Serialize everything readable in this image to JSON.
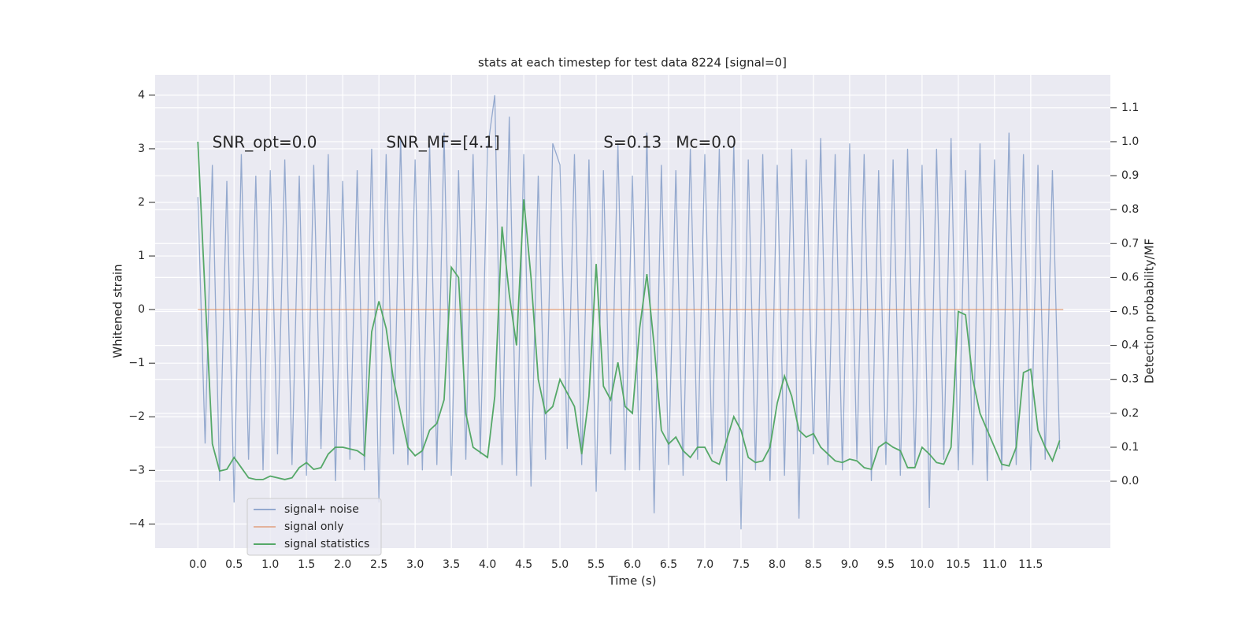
{
  "chart_data": {
    "type": "line",
    "title": "stats at each timestep for test data 8224 [signal=0]",
    "xlabel": "Time (s)",
    "ylabel": "Whitened strain",
    "y2label": "Detection probability/MF",
    "annotations": [
      {
        "text": "SNR_opt=0.0",
        "x": 0.2,
        "y": 3.1
      },
      {
        "text": "SNR_MF=[4.1]",
        "x": 2.6,
        "y": 3.1
      },
      {
        "text": "S=0.13",
        "x": 5.6,
        "y": 3.1
      },
      {
        "text": "Mc=0.0",
        "x": 6.6,
        "y": 3.1
      }
    ],
    "xlim": [
      -0.59,
      12.6
    ],
    "ylim": [
      -4.45,
      4.38
    ],
    "y2lim": [
      -0.197,
      1.197
    ],
    "xticks": [
      {
        "value": 0,
        "label": "0.0"
      },
      0.5,
      {
        "value": 1,
        "label": "1.0"
      },
      1.5,
      {
        "value": 2,
        "label": "2.0"
      },
      2.5,
      {
        "value": 3,
        "label": "3.0"
      },
      3.5,
      {
        "value": 4,
        "label": "4.0"
      },
      4.5,
      {
        "value": 5,
        "label": "5.0"
      },
      5.5,
      {
        "value": 6,
        "label": "6.0"
      },
      6.5,
      {
        "value": 7,
        "label": "7.0"
      },
      7.5,
      {
        "value": 8,
        "label": "8.0"
      },
      8.5,
      {
        "value": 9,
        "label": "9.0"
      },
      9.5,
      {
        "value": 10,
        "label": "10.0"
      },
      10.5,
      {
        "value": 11,
        "label": "11.0"
      },
      11.5
    ],
    "yticks": [
      {
        "value": -4,
        "label": "−4"
      },
      {
        "value": -3,
        "label": "−3"
      },
      {
        "value": -2,
        "label": "−2"
      },
      {
        "value": -1,
        "label": "−1"
      },
      0,
      1,
      2,
      3,
      4
    ],
    "y2ticks": [
      {
        "value": 0,
        "label": "0.0"
      },
      0.1,
      0.2,
      0.3,
      0.4,
      0.5,
      0.6,
      0.7,
      0.8,
      0.9,
      {
        "value": 1,
        "label": "1.0"
      },
      1.1
    ],
    "grid": true,
    "legend": "lower left",
    "series": [
      {
        "name": "signal+ noise",
        "color": "#4c72b0",
        "opacity": 0.55,
        "x": [
          0.0,
          0.1,
          0.2,
          0.3,
          0.4,
          0.5,
          0.6,
          0.7,
          0.8,
          0.9,
          1.0,
          1.1,
          1.2,
          1.3,
          1.4,
          1.5,
          1.6,
          1.7,
          1.8,
          1.9,
          2.0,
          2.1,
          2.2,
          2.3,
          2.4,
          2.5,
          2.6,
          2.7,
          2.8,
          2.9,
          3.0,
          3.1,
          3.2,
          3.3,
          3.4,
          3.5,
          3.6,
          3.7,
          3.8,
          3.9,
          4.0,
          4.1,
          4.2,
          4.3,
          4.4,
          4.5,
          4.6,
          4.7,
          4.8,
          4.9,
          5.0,
          5.1,
          5.2,
          5.3,
          5.4,
          5.5,
          5.6,
          5.7,
          5.8,
          5.9,
          6.0,
          6.1,
          6.2,
          6.3,
          6.4,
          6.5,
          6.6,
          6.7,
          6.8,
          6.9,
          7.0,
          7.1,
          7.2,
          7.3,
          7.4,
          7.5,
          7.6,
          7.7,
          7.8,
          7.9,
          8.0,
          8.1,
          8.2,
          8.3,
          8.4,
          8.5,
          8.6,
          8.7,
          8.8,
          8.9,
          9.0,
          9.1,
          9.2,
          9.3,
          9.4,
          9.5,
          9.6,
          9.7,
          9.8,
          9.9,
          10.0,
          10.1,
          10.2,
          10.3,
          10.4,
          10.5,
          10.6,
          10.7,
          10.8,
          10.9,
          11.0,
          11.1,
          11.2,
          11.3,
          11.4,
          11.5,
          11.6,
          11.7,
          11.8,
          11.9
        ],
        "values": [
          2.1,
          -2.5,
          2.7,
          -3.2,
          2.4,
          -3.6,
          2.9,
          -2.8,
          2.5,
          -3.0,
          2.6,
          -2.7,
          2.8,
          -2.9,
          2.5,
          -3.1,
          2.7,
          -2.6,
          2.9,
          -3.2,
          2.4,
          -2.8,
          2.6,
          -3.0,
          3.0,
          -3.6,
          2.9,
          -2.7,
          3.2,
          -2.9,
          2.8,
          -3.0,
          3.1,
          -2.9,
          3.3,
          -3.1,
          2.6,
          -2.8,
          2.9,
          -2.7,
          3.0,
          4.0,
          -2.9,
          3.6,
          -3.1,
          2.9,
          -3.3,
          2.5,
          -2.8,
          3.1,
          2.7,
          -2.6,
          2.9,
          -2.9,
          2.8,
          -3.4,
          2.6,
          -2.7,
          3.1,
          -3.0,
          2.5,
          -3.0,
          3.3,
          -3.8,
          2.7,
          -2.9,
          2.6,
          -3.1,
          3.0,
          -2.8,
          2.9,
          -2.7,
          3.0,
          -3.2,
          3.1,
          -4.1,
          2.8,
          -3.0,
          2.9,
          -3.2,
          2.7,
          -3.1,
          3.0,
          -3.9,
          2.8,
          -2.7,
          3.2,
          -2.9,
          2.9,
          -3.0,
          3.1,
          -2.8,
          2.9,
          -3.2,
          2.6,
          -2.9,
          2.8,
          -3.1,
          3.0,
          -2.9,
          2.7,
          -3.7,
          3.0,
          -2.8,
          3.2,
          -3.0,
          2.6,
          -2.9,
          3.1,
          -3.2,
          2.8,
          -3.0,
          3.3,
          -2.9,
          2.9,
          -3.0,
          2.7,
          -2.8,
          2.6,
          -2.6
        ]
      },
      {
        "name": "signal only",
        "color": "#dd8452",
        "opacity": 0.55,
        "x": [
          0.0,
          11.95
        ],
        "values": [
          0,
          0
        ]
      },
      {
        "name": "signal statistics",
        "color": "#55a868",
        "opacity": 1,
        "axis": "y2",
        "x": [
          0.0,
          0.1,
          0.2,
          0.3,
          0.4,
          0.5,
          0.6,
          0.7,
          0.8,
          0.9,
          1.0,
          1.1,
          1.2,
          1.3,
          1.4,
          1.5,
          1.6,
          1.7,
          1.8,
          1.9,
          2.0,
          2.1,
          2.2,
          2.3,
          2.4,
          2.5,
          2.6,
          2.7,
          2.8,
          2.9,
          3.0,
          3.1,
          3.2,
          3.3,
          3.4,
          3.5,
          3.6,
          3.7,
          3.8,
          3.9,
          4.0,
          4.1,
          4.2,
          4.3,
          4.4,
          4.5,
          4.6,
          4.7,
          4.8,
          4.9,
          5.0,
          5.1,
          5.2,
          5.3,
          5.4,
          5.5,
          5.6,
          5.7,
          5.8,
          5.9,
          6.0,
          6.1,
          6.2,
          6.3,
          6.4,
          6.5,
          6.6,
          6.7,
          6.8,
          6.9,
          7.0,
          7.1,
          7.2,
          7.3,
          7.4,
          7.5,
          7.6,
          7.7,
          7.8,
          7.9,
          8.0,
          8.1,
          8.2,
          8.3,
          8.4,
          8.5,
          8.6,
          8.7,
          8.8,
          8.9,
          9.0,
          9.1,
          9.2,
          9.3,
          9.4,
          9.5,
          9.6,
          9.7,
          9.8,
          9.9,
          10.0,
          10.1,
          10.2,
          10.3,
          10.4,
          10.5,
          10.6,
          10.7,
          10.8,
          10.9,
          11.0,
          11.1,
          11.2,
          11.3,
          11.4,
          11.5,
          11.6,
          11.7,
          11.8,
          11.9
        ],
        "values": [
          1.0,
          0.55,
          0.11,
          0.03,
          0.035,
          0.07,
          0.04,
          0.01,
          0.005,
          0.005,
          0.015,
          0.01,
          0.005,
          0.01,
          0.04,
          0.055,
          0.035,
          0.04,
          0.08,
          0.1,
          0.1,
          0.095,
          0.09,
          0.075,
          0.44,
          0.53,
          0.45,
          0.3,
          0.2,
          0.1,
          0.075,
          0.09,
          0.15,
          0.17,
          0.24,
          0.63,
          0.6,
          0.2,
          0.1,
          0.085,
          0.07,
          0.25,
          0.75,
          0.55,
          0.4,
          0.83,
          0.6,
          0.3,
          0.2,
          0.22,
          0.3,
          0.26,
          0.22,
          0.08,
          0.25,
          0.64,
          0.28,
          0.24,
          0.35,
          0.22,
          0.2,
          0.45,
          0.61,
          0.4,
          0.15,
          0.11,
          0.13,
          0.09,
          0.07,
          0.1,
          0.1,
          0.06,
          0.05,
          0.12,
          0.19,
          0.15,
          0.07,
          0.055,
          0.06,
          0.1,
          0.23,
          0.31,
          0.25,
          0.15,
          0.13,
          0.14,
          0.1,
          0.08,
          0.06,
          0.055,
          0.065,
          0.06,
          0.04,
          0.035,
          0.1,
          0.115,
          0.1,
          0.09,
          0.04,
          0.04,
          0.1,
          0.08,
          0.055,
          0.05,
          0.1,
          0.5,
          0.49,
          0.3,
          0.2,
          0.15,
          0.1,
          0.05,
          0.045,
          0.1,
          0.32,
          0.33,
          0.15,
          0.1,
          0.06,
          0.12
        ]
      }
    ]
  }
}
